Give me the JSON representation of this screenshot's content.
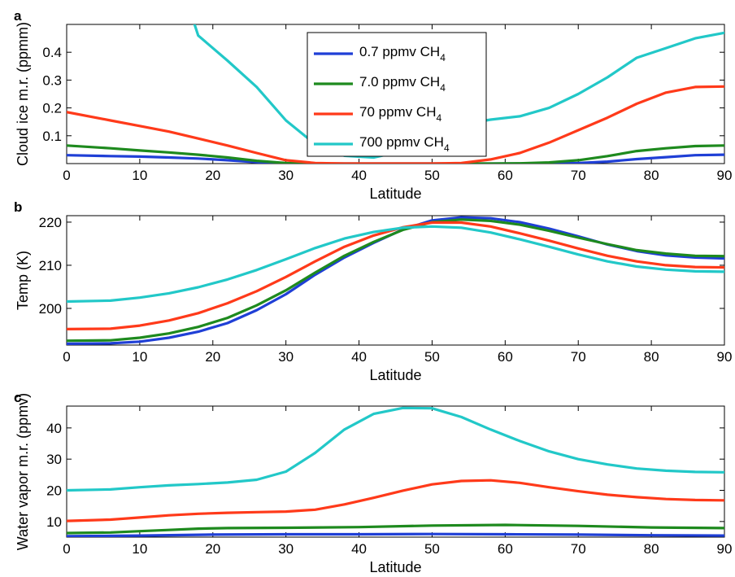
{
  "chart_data": [
    {
      "panel": "a",
      "type": "line",
      "xlabel": "Latitude",
      "ylabel": "Cloud ice m.r. (ppmm)",
      "xlim": [
        0,
        90
      ],
      "ylim": [
        0,
        0.5
      ],
      "xticks": [
        0,
        10,
        20,
        30,
        40,
        50,
        60,
        70,
        80,
        90
      ],
      "yticks": [
        0.1,
        0.2,
        0.3,
        0.4
      ],
      "ytick_labels": [
        "0.1",
        "0.2",
        "0.3",
        "0.4"
      ],
      "legend": {
        "placement": "top-center"
      },
      "series": [
        {
          "name": "0.7 ppmv CH",
          "sub": "4",
          "color": "#1f3fd6",
          "x": [
            0,
            6,
            10,
            14,
            18,
            22,
            26,
            30,
            34,
            38,
            42,
            46,
            50,
            54,
            58,
            62,
            66,
            70,
            74,
            78,
            82,
            86,
            90
          ],
          "y": [
            0.03,
            0.027,
            0.025,
            0.022,
            0.018,
            0.012,
            0.005,
            0.001,
            0,
            0,
            0,
            0,
            0,
            0,
            0,
            0,
            0,
            0.002,
            0.007,
            0.016,
            0.023,
            0.03,
            0.032
          ]
        },
        {
          "name": "7.0 ppmv CH",
          "sub": "4",
          "color": "#1e8a1e",
          "x": [
            0,
            6,
            10,
            14,
            18,
            22,
            26,
            30,
            34,
            38,
            42,
            46,
            50,
            54,
            58,
            62,
            66,
            70,
            74,
            78,
            82,
            86,
            90
          ],
          "y": [
            0.065,
            0.055,
            0.047,
            0.04,
            0.032,
            0.022,
            0.01,
            0.002,
            0,
            0,
            0,
            0,
            0,
            0,
            0,
            0.001,
            0.004,
            0.012,
            0.027,
            0.045,
            0.055,
            0.063,
            0.065
          ]
        },
        {
          "name": "70 ppmv CH",
          "sub": "4",
          "color": "#ff3a1a",
          "x": [
            0,
            6,
            10,
            14,
            18,
            22,
            26,
            30,
            34,
            38,
            42,
            46,
            50,
            54,
            58,
            62,
            66,
            70,
            74,
            78,
            82,
            86,
            90
          ],
          "y": [
            0.185,
            0.155,
            0.135,
            0.115,
            0.09,
            0.065,
            0.038,
            0.012,
            0.002,
            0,
            0,
            0,
            0,
            0.002,
            0.015,
            0.038,
            0.075,
            0.12,
            0.165,
            0.215,
            0.255,
            0.275,
            0.277
          ]
        },
        {
          "name": "700 ppmv CH",
          "sub": "4",
          "color": "#22c8c8",
          "x": [
            17,
            18,
            22,
            26,
            30,
            34,
            38,
            42,
            46,
            50,
            54,
            58,
            62,
            66,
            70,
            74,
            78,
            82,
            86,
            90
          ],
          "y": [
            0.54,
            0.46,
            0.37,
            0.275,
            0.155,
            0.07,
            0.028,
            0.022,
            0.045,
            0.1,
            0.14,
            0.158,
            0.17,
            0.2,
            0.25,
            0.31,
            0.38,
            0.415,
            0.45,
            0.47
          ]
        }
      ]
    },
    {
      "panel": "b",
      "type": "line",
      "xlabel": "Latitude",
      "ylabel": "Temp (K)",
      "xlim": [
        0,
        90
      ],
      "ylim": [
        191.5,
        221.5
      ],
      "xticks": [
        0,
        10,
        20,
        30,
        40,
        50,
        60,
        70,
        80,
        90
      ],
      "yticks": [
        200,
        210,
        220
      ],
      "ytick_labels": [
        "200",
        "210",
        "220"
      ],
      "series": [
        {
          "name": "0.7 ppmv CH4",
          "color": "#1f3fd6",
          "x": [
            0,
            6,
            10,
            14,
            18,
            22,
            26,
            30,
            34,
            38,
            42,
            46,
            50,
            54,
            58,
            62,
            66,
            70,
            74,
            78,
            82,
            86,
            90
          ],
          "y": [
            191.8,
            191.9,
            192.3,
            193.2,
            194.6,
            196.6,
            199.6,
            203.3,
            207.8,
            211.8,
            215.2,
            218.3,
            220.4,
            221.1,
            220.9,
            220.0,
            218.5,
            216.7,
            214.8,
            213.3,
            212.3,
            211.8,
            211.6
          ]
        },
        {
          "name": "7.0 ppmv CH4",
          "color": "#1e8a1e",
          "x": [
            0,
            6,
            10,
            14,
            18,
            22,
            26,
            30,
            34,
            38,
            42,
            46,
            50,
            54,
            58,
            62,
            66,
            70,
            74,
            78,
            82,
            86,
            90
          ],
          "y": [
            192.5,
            192.6,
            193.2,
            194.2,
            195.7,
            197.8,
            200.7,
            204.2,
            208.3,
            212.2,
            215.4,
            218.2,
            220.0,
            220.6,
            220.3,
            219.4,
            218.0,
            216.4,
            214.9,
            213.5,
            212.7,
            212.2,
            212.1
          ]
        },
        {
          "name": "70 ppmv CH4",
          "color": "#ff3a1a",
          "x": [
            0,
            6,
            10,
            14,
            18,
            22,
            26,
            30,
            34,
            38,
            42,
            46,
            50,
            54,
            58,
            62,
            66,
            70,
            74,
            78,
            82,
            86,
            90
          ],
          "y": [
            195.2,
            195.3,
            196.0,
            197.2,
            198.9,
            201.2,
            204.0,
            207.3,
            210.9,
            214.3,
            216.9,
            218.8,
            219.9,
            219.9,
            219.0,
            217.4,
            215.7,
            213.9,
            212.2,
            210.9,
            210.0,
            209.6,
            209.5
          ]
        },
        {
          "name": "700 ppmv CH4",
          "color": "#22c8c8",
          "x": [
            0,
            6,
            10,
            14,
            18,
            22,
            26,
            30,
            34,
            38,
            42,
            46,
            50,
            54,
            58,
            62,
            66,
            70,
            74,
            78,
            82,
            86,
            90
          ],
          "y": [
            201.6,
            201.8,
            202.5,
            203.5,
            204.9,
            206.7,
            208.9,
            211.4,
            214.0,
            216.2,
            217.7,
            218.7,
            219.0,
            218.7,
            217.6,
            216.0,
            214.3,
            212.5,
            210.9,
            209.7,
            209.0,
            208.6,
            208.5
          ]
        }
      ]
    },
    {
      "panel": "c",
      "type": "line",
      "xlabel": "Latitude",
      "ylabel": "Water vapor m.r. (ppmv)",
      "xlim": [
        0,
        90
      ],
      "ylim": [
        5,
        47
      ],
      "xticks": [
        0,
        10,
        20,
        30,
        40,
        50,
        60,
        70,
        80,
        90
      ],
      "yticks": [
        10,
        20,
        30,
        40
      ],
      "ytick_labels": [
        "10",
        "20",
        "30",
        "40"
      ],
      "series": [
        {
          "name": "0.7 ppmv CH4",
          "color": "#1f3fd6",
          "x": [
            0,
            10,
            20,
            30,
            40,
            50,
            60,
            70,
            80,
            90
          ],
          "y": [
            5.3,
            5.5,
            5.8,
            5.9,
            5.9,
            6.0,
            5.9,
            5.8,
            5.6,
            5.5
          ]
        },
        {
          "name": "7.0 ppmv CH4",
          "color": "#1e8a1e",
          "x": [
            0,
            6,
            10,
            14,
            18,
            22,
            30,
            40,
            50,
            60,
            70,
            80,
            90
          ],
          "y": [
            6.3,
            6.5,
            6.9,
            7.3,
            7.7,
            7.9,
            8.0,
            8.2,
            8.7,
            8.9,
            8.6,
            8.1,
            7.9
          ]
        },
        {
          "name": "70 ppmv CH4",
          "color": "#ff3a1a",
          "x": [
            0,
            6,
            10,
            14,
            18,
            22,
            26,
            30,
            34,
            38,
            42,
            46,
            50,
            54,
            58,
            62,
            66,
            70,
            74,
            78,
            82,
            86,
            90
          ],
          "y": [
            10.2,
            10.6,
            11.3,
            12.0,
            12.5,
            12.8,
            13.0,
            13.2,
            13.8,
            15.5,
            17.6,
            19.9,
            21.9,
            23.0,
            23.2,
            22.4,
            21.0,
            19.7,
            18.6,
            17.8,
            17.2,
            16.9,
            16.8
          ]
        },
        {
          "name": "700 ppmv CH4",
          "color": "#22c8c8",
          "x": [
            0,
            6,
            10,
            14,
            18,
            22,
            26,
            30,
            34,
            38,
            42,
            46,
            50,
            54,
            58,
            62,
            66,
            70,
            74,
            78,
            82,
            86,
            90
          ],
          "y": [
            20.0,
            20.3,
            21.0,
            21.6,
            22.0,
            22.5,
            23.4,
            26.0,
            32.0,
            39.5,
            44.5,
            46.4,
            46.3,
            43.5,
            39.5,
            35.8,
            32.5,
            30.0,
            28.3,
            27.0,
            26.3,
            25.9,
            25.8
          ]
        }
      ]
    }
  ]
}
